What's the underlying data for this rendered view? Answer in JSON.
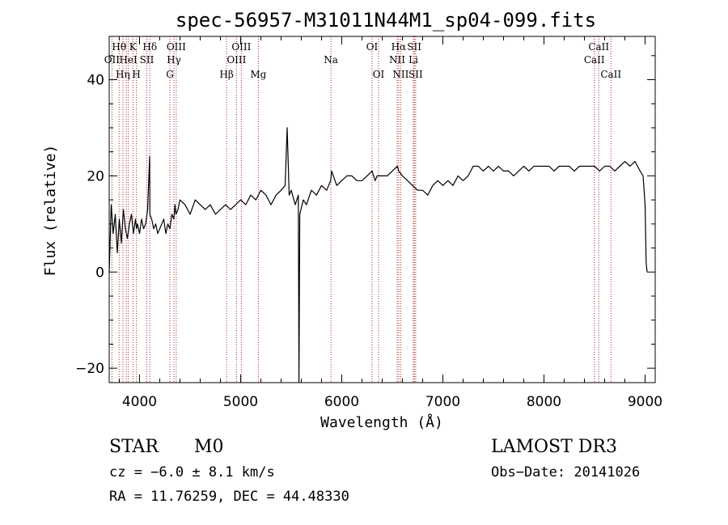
{
  "chart_data": {
    "type": "line",
    "title": "spec-56957-M31011N44M1_sp04-099.fits",
    "xlabel": "Wavelength (Å)",
    "ylabel": "Flux (relative)",
    "xlim": [
      3700,
      9100
    ],
    "ylim": [
      -23,
      49
    ],
    "xticks": [
      4000,
      5000,
      6000,
      7000,
      8000,
      9000
    ],
    "xtick_labels": [
      "4000",
      "5000",
      "6000",
      "7000",
      "8000",
      "9000"
    ],
    "yticks": [
      -20,
      0,
      20,
      40
    ],
    "ytick_labels": [
      "−20",
      "0",
      "20",
      "40"
    ],
    "spectrum": {
      "name": "flux",
      "x": [
        3700,
        3720,
        3740,
        3760,
        3780,
        3800,
        3820,
        3840,
        3860,
        3880,
        3900,
        3920,
        3940,
        3960,
        3970,
        3980,
        4000,
        4020,
        4040,
        4060,
        4080,
        4100,
        4102,
        4120,
        4140,
        4160,
        4180,
        4200,
        4220,
        4240,
        4260,
        4280,
        4300,
        4320,
        4340,
        4350,
        4360,
        4380,
        4400,
        4450,
        4500,
        4550,
        4600,
        4650,
        4700,
        4750,
        4800,
        4850,
        4900,
        4950,
        5000,
        5050,
        5100,
        5150,
        5200,
        5250,
        5300,
        5350,
        5400,
        5440,
        5460,
        5480,
        5500,
        5540,
        5570,
        5577,
        5585,
        5620,
        5650,
        5700,
        5750,
        5800,
        5850,
        5890,
        5900,
        5950,
        6000,
        6050,
        6100,
        6150,
        6200,
        6250,
        6300,
        6330,
        6350,
        6400,
        6450,
        6500,
        6550,
        6563,
        6600,
        6650,
        6700,
        6750,
        6800,
        6850,
        6900,
        6950,
        7000,
        7050,
        7100,
        7150,
        7200,
        7250,
        7300,
        7350,
        7400,
        7450,
        7500,
        7550,
        7600,
        7650,
        7700,
        7750,
        7800,
        7850,
        7900,
        7950,
        8000,
        8050,
        8100,
        8150,
        8200,
        8250,
        8300,
        8350,
        8400,
        8450,
        8500,
        8550,
        8600,
        8650,
        8700,
        8750,
        8800,
        8850,
        8900,
        8950,
        8980,
        9000,
        9010,
        9020
      ],
      "y": [
        0,
        14,
        8,
        12,
        4,
        11,
        6,
        13,
        9,
        7,
        10,
        12,
        8,
        11,
        9,
        10,
        8,
        11,
        9,
        10,
        13,
        24,
        12,
        11,
        9,
        10,
        8,
        9,
        10,
        11,
        8,
        10,
        9,
        12,
        11,
        14,
        12,
        13,
        15,
        14,
        12,
        15,
        14,
        13,
        14,
        12,
        13,
        14,
        13,
        14,
        15,
        14,
        16,
        15,
        17,
        16,
        14,
        16,
        17,
        18,
        30,
        16,
        17,
        14,
        16,
        -23,
        12,
        15,
        14,
        17,
        16,
        18,
        17,
        19,
        21,
        18,
        19,
        20,
        20,
        19,
        19,
        20,
        21,
        19,
        20,
        20,
        20,
        21,
        22,
        21,
        20,
        19,
        18,
        17,
        17,
        16,
        18,
        19,
        18,
        19,
        18,
        20,
        19,
        20,
        22,
        22,
        21,
        22,
        21,
        22,
        21,
        21,
        20,
        21,
        22,
        21,
        22,
        22,
        22,
        22,
        21,
        22,
        22,
        22,
        21,
        22,
        22,
        22,
        22,
        21,
        22,
        22,
        21,
        22,
        23,
        22,
        23,
        21,
        20,
        14,
        2,
        0
      ]
    },
    "lines": [
      {
        "wl": 3727,
        "label": "OII",
        "row": 2
      },
      {
        "wl": 3798,
        "label": "Hθ",
        "row": 1
      },
      {
        "wl": 3835,
        "label": "Hη",
        "row": 3
      },
      {
        "wl": 3869,
        "label": "",
        "row": 0
      },
      {
        "wl": 3889,
        "label": "HeI",
        "row": 2
      },
      {
        "wl": 3934,
        "label": "K",
        "row": 1
      },
      {
        "wl": 3969,
        "label": "H",
        "row": 3
      },
      {
        "wl": 4072,
        "label": "SII",
        "row": 2
      },
      {
        "wl": 4102,
        "label": "Hδ",
        "row": 1
      },
      {
        "wl": 4300,
        "label": "G",
        "row": 3
      },
      {
        "wl": 4340,
        "label": "Hγ",
        "row": 2
      },
      {
        "wl": 4363,
        "label": "OIII",
        "row": 1
      },
      {
        "wl": 4861,
        "label": "Hβ",
        "row": 3
      },
      {
        "wl": 4959,
        "label": "OIII",
        "row": 2
      },
      {
        "wl": 5007,
        "label": "OIII",
        "row": 1
      },
      {
        "wl": 5175,
        "label": "Mg",
        "row": 3
      },
      {
        "wl": 5893,
        "label": "Na",
        "row": 2
      },
      {
        "wl": 6300,
        "label": "OI",
        "row": 1
      },
      {
        "wl": 6364,
        "label": "OI",
        "row": 3
      },
      {
        "wl": 6548,
        "label": "NII",
        "row": 2
      },
      {
        "wl": 6563,
        "label": "Hα",
        "row": 1
      },
      {
        "wl": 6583,
        "label": "NII",
        "row": 3
      },
      {
        "wl": 6708,
        "label": "Li",
        "row": 2
      },
      {
        "wl": 6717,
        "label": "SII",
        "row": 1
      },
      {
        "wl": 6731,
        "label": "SII",
        "row": 3
      },
      {
        "wl": 8498,
        "label": "CaII",
        "row": 2
      },
      {
        "wl": 8542,
        "label": "CaII",
        "row": 1
      },
      {
        "wl": 8662,
        "label": "CaII",
        "row": 3
      }
    ],
    "info": {
      "class_label": "STAR",
      "subclass": "M0",
      "survey": "LAMOST DR3",
      "cz": "cz = −6.0 ± 8.1 km/s",
      "obs_date": "Obs−Date: 20141026",
      "coords": "RA =  11.76259, DEC =  44.48330"
    },
    "colors": {
      "spectrum": "#000000",
      "lines": "#b22222",
      "axes": "#000000"
    }
  }
}
